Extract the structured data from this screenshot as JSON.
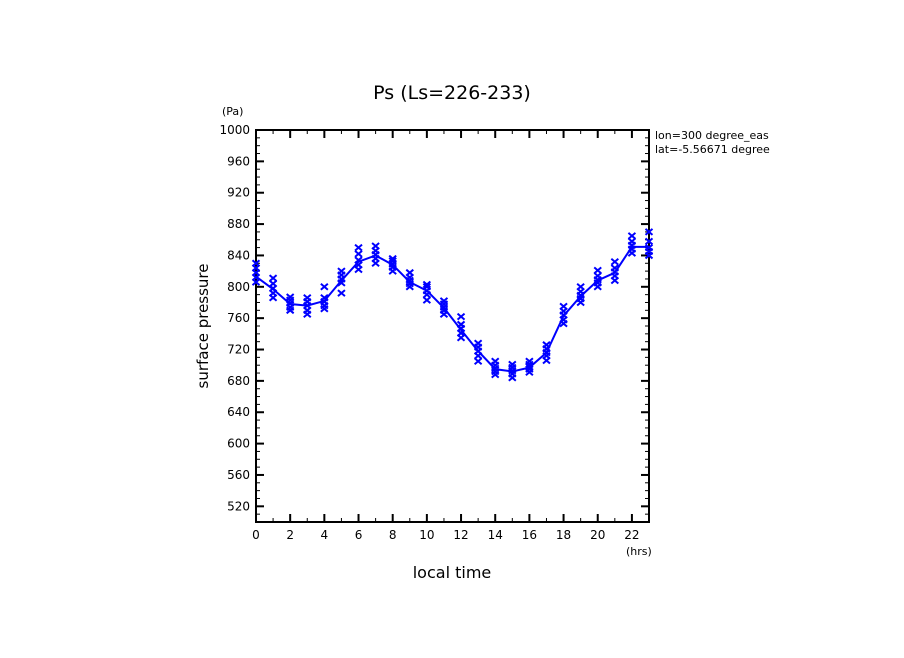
{
  "chart_data": {
    "type": "line",
    "title": "Ps (Ls=226-233)",
    "xlabel": "local time",
    "xunit": "(hrs)",
    "ylabel": "surface pressure",
    "yunit": "(Pa)",
    "xlim": [
      0,
      23
    ],
    "ylim": [
      500,
      1000
    ],
    "xticks": [
      0,
      2,
      4,
      6,
      8,
      10,
      12,
      14,
      16,
      18,
      20,
      22
    ],
    "yticks": [
      520,
      560,
      600,
      640,
      680,
      720,
      760,
      800,
      840,
      880,
      920,
      960,
      1000
    ],
    "annotations": [
      "lon=300 degree_eas",
      "lat=-5.56671 degree"
    ],
    "grid": false,
    "color": "#0000ff",
    "series": [
      {
        "x": [
          0,
          1,
          2,
          3,
          4,
          5,
          6,
          7,
          8,
          9,
          10,
          11,
          12,
          13,
          14,
          15,
          16,
          17,
          18,
          19,
          20,
          21,
          22,
          23
        ],
        "values": [
          813,
          797,
          778,
          776,
          782,
          808,
          832,
          840,
          828,
          806,
          795,
          773,
          745,
          718,
          695,
          692,
          697,
          716,
          763,
          788,
          808,
          818,
          851,
          851
        ]
      }
    ],
    "scatter": [
      [
        806,
        812,
        818,
        824,
        830
      ],
      [
        786,
        792,
        798,
        804,
        811
      ],
      [
        770,
        774,
        779,
        783,
        787
      ],
      [
        765,
        770,
        776,
        781,
        786
      ],
      [
        772,
        776,
        781,
        786,
        800
      ],
      [
        792,
        805,
        810,
        815,
        820
      ],
      [
        822,
        828,
        834,
        842,
        850
      ],
      [
        830,
        836,
        841,
        846,
        852
      ],
      [
        820,
        825,
        829,
        833,
        836
      ],
      [
        800,
        804,
        808,
        812,
        818
      ],
      [
        783,
        790,
        795,
        800,
        803
      ],
      [
        765,
        770,
        774,
        778,
        782
      ],
      [
        735,
        741,
        747,
        752,
        762
      ],
      [
        705,
        712,
        718,
        723,
        728
      ],
      [
        688,
        692,
        696,
        700,
        705
      ],
      [
        684,
        689,
        693,
        697,
        701
      ],
      [
        691,
        695,
        698,
        701,
        705
      ],
      [
        706,
        712,
        716,
        721,
        726
      ],
      [
        753,
        758,
        764,
        769,
        775
      ],
      [
        780,
        785,
        789,
        794,
        800
      ],
      [
        800,
        805,
        809,
        814,
        821
      ],
      [
        808,
        814,
        819,
        824,
        832
      ],
      [
        843,
        848,
        853,
        858,
        865
      ],
      [
        840,
        845,
        850,
        858,
        870
      ]
    ]
  }
}
